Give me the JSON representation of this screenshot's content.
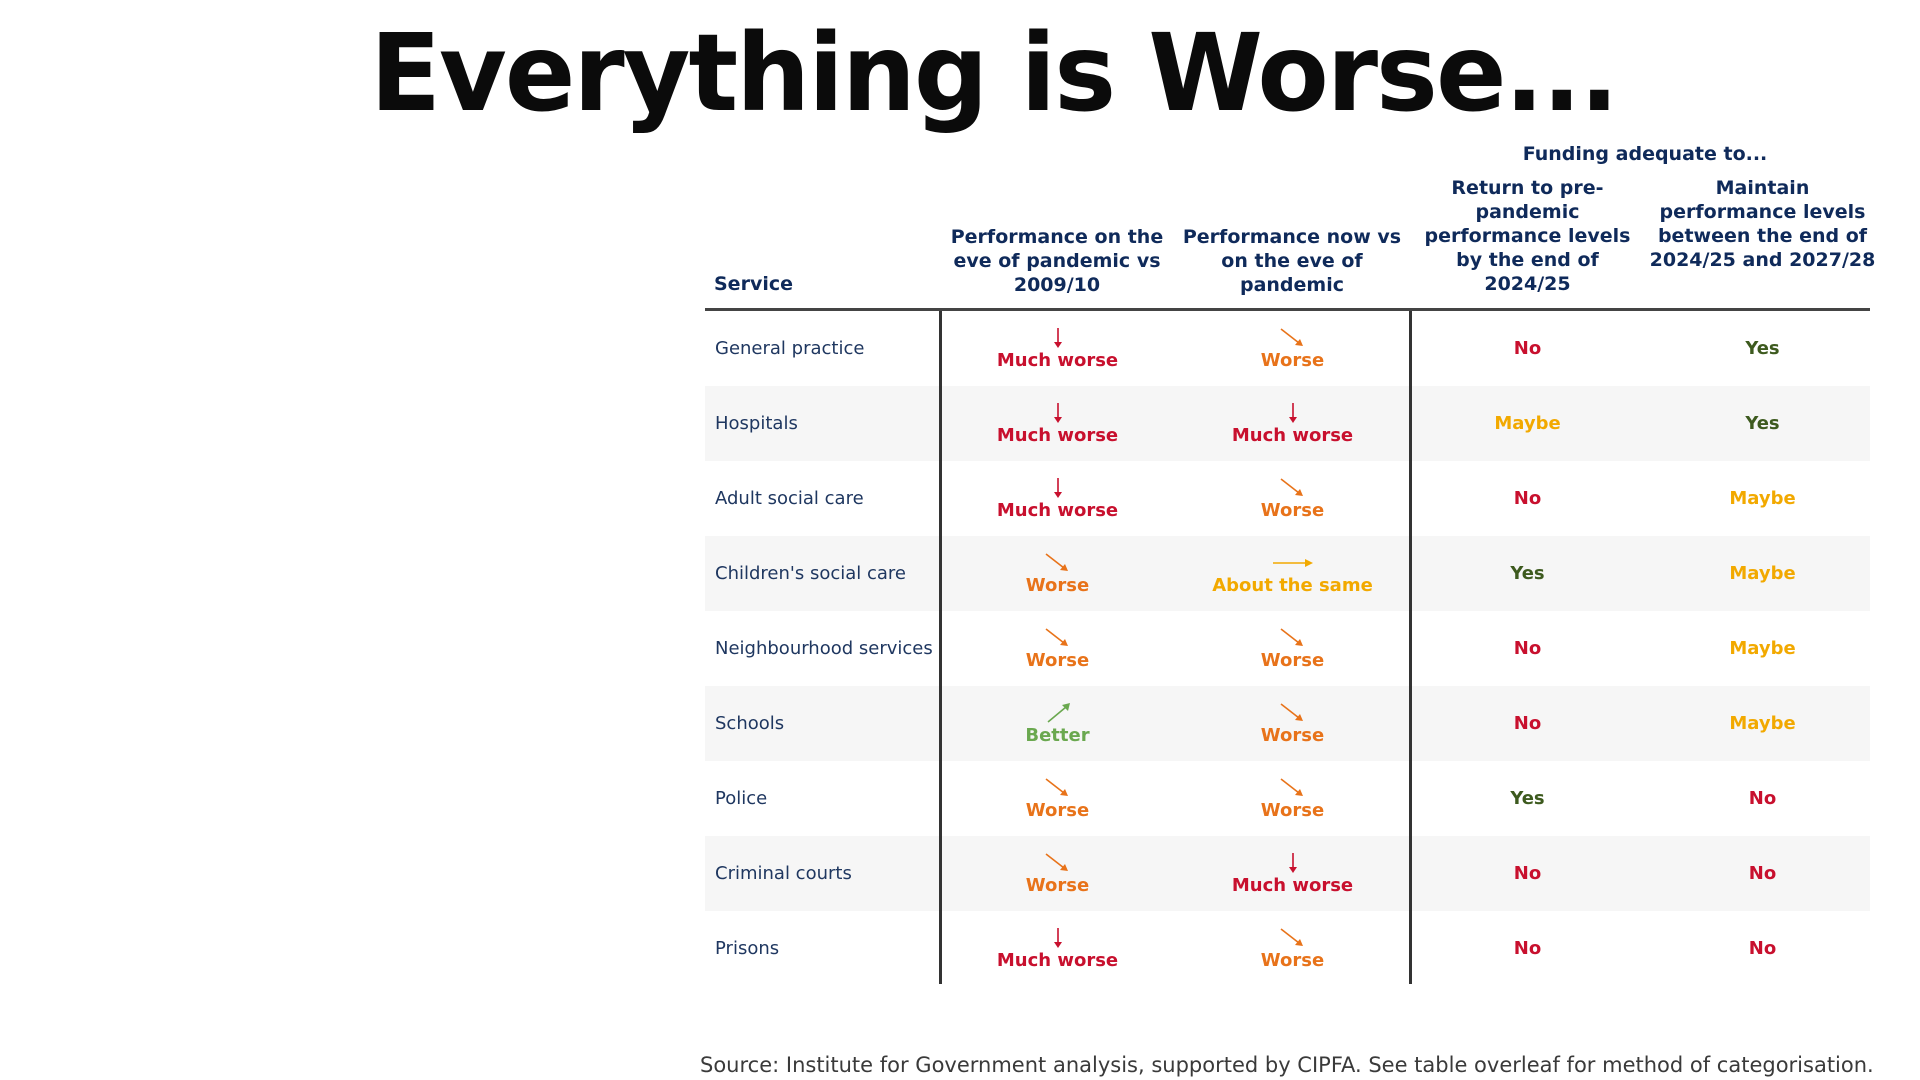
{
  "title": "Everything is Worse...",
  "table": {
    "funding_header": "Funding adequate to...",
    "headers": {
      "service": "Service",
      "col1": "Performance on the eve of pandemic vs 2009/10",
      "col2": "Performance now vs on the eve of pandemic",
      "col3": "Return to pre-pandemic performance levels by the end of 2024/25",
      "col4": "Maintain performance levels between the end of 2024/25 and 2027/28"
    },
    "rows": [
      {
        "service": "General practice",
        "col1": "Much worse",
        "col2": "Worse",
        "col3": "No",
        "col4": "Yes"
      },
      {
        "service": "Hospitals",
        "col1": "Much worse",
        "col2": "Much worse",
        "col3": "Maybe",
        "col4": "Yes"
      },
      {
        "service": "Adult social care",
        "col1": "Much worse",
        "col2": "Worse",
        "col3": "No",
        "col4": "Maybe"
      },
      {
        "service": "Children's social care",
        "col1": "Worse",
        "col2": "About the same",
        "col3": "Yes",
        "col4": "Maybe"
      },
      {
        "service": "Neighbourhood services",
        "col1": "Worse",
        "col2": "Worse",
        "col3": "No",
        "col4": "Maybe"
      },
      {
        "service": "Schools",
        "col1": "Better",
        "col2": "Worse",
        "col3": "No",
        "col4": "Maybe"
      },
      {
        "service": "Police",
        "col1": "Worse",
        "col2": "Worse",
        "col3": "Yes",
        "col4": "No"
      },
      {
        "service": "Criminal courts",
        "col1": "Worse",
        "col2": "Much worse",
        "col3": "No",
        "col4": "No"
      },
      {
        "service": "Prisons",
        "col1": "Much worse",
        "col2": "Worse",
        "col3": "No",
        "col4": "No"
      }
    ]
  },
  "source": "Source: Institute for Government analysis, supported by CIPFA. See table overleaf for method of categorisation.",
  "colors": {
    "much_worse": "#c8102e",
    "worse": "#e8731a",
    "about_same": "#f2a900",
    "better": "#6aa84f",
    "no": "#c8102e",
    "yes": "#3d5a1e",
    "maybe": "#f2a900",
    "header_navy": "#0f2a5a"
  },
  "icons": {
    "Much worse": "arrow-down-icon",
    "Worse": "arrow-down-right-icon",
    "About the same": "arrow-right-icon",
    "Better": "arrow-up-right-icon"
  }
}
